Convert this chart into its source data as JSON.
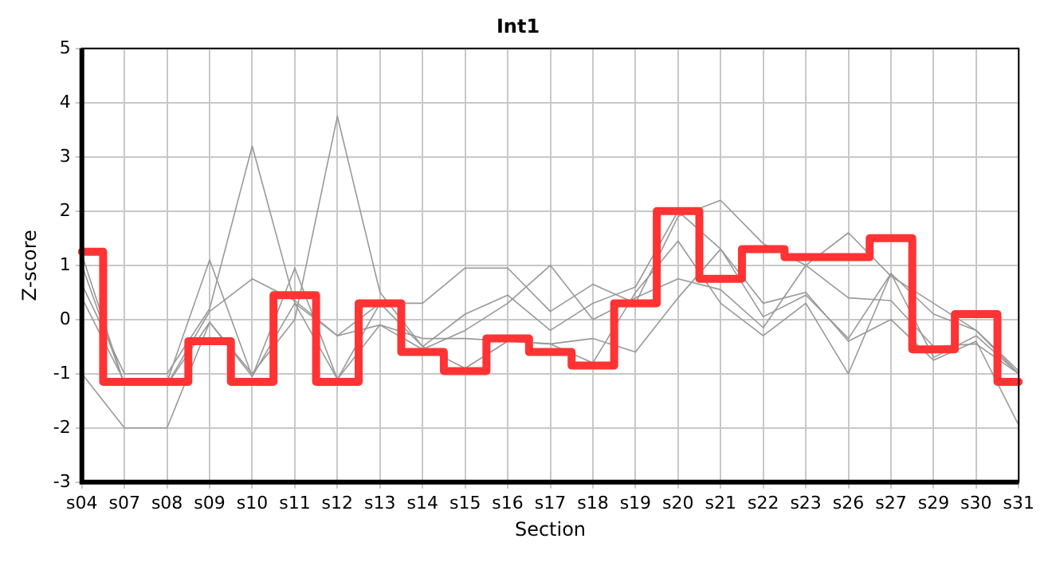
{
  "chart_data": {
    "type": "line",
    "title": "Int1",
    "xlabel": "Section",
    "ylabel": "Z-score",
    "categories": [
      "s04",
      "s07",
      "s08",
      "s09",
      "s10",
      "s11",
      "s12",
      "s13",
      "s14",
      "s15",
      "s16",
      "s17",
      "s18",
      "s19",
      "s20",
      "s21",
      "s22",
      "s23",
      "s26",
      "s27",
      "s29",
      "s30",
      "s31"
    ],
    "series": [
      {
        "color": "#999999",
        "values": [
          0.65,
          -1.0,
          -1.0,
          0.2,
          3.2,
          0.3,
          -1.1,
          0.3,
          0.3,
          0.95,
          0.95,
          0.15,
          0.65,
          0.3,
          1.9,
          2.2,
          1.4,
          1.0,
          1.6,
          0.8,
          0.3,
          -0.2,
          -1.0
        ]
      },
      {
        "color": "#999999",
        "values": [
          1.0,
          -1.2,
          -1.2,
          -0.05,
          -1.0,
          0.0,
          3.75,
          0.5,
          -0.5,
          0.1,
          0.45,
          -0.2,
          0.3,
          0.6,
          2.0,
          1.3,
          0.05,
          0.45,
          -0.35,
          0.85,
          -0.7,
          -0.3,
          -1.0
        ]
      },
      {
        "color": "#999999",
        "values": [
          -1.0,
          -2.0,
          -2.0,
          -0.05,
          -1.05,
          0.95,
          -1.1,
          -0.1,
          -0.35,
          -0.35,
          -0.4,
          -0.45,
          -0.35,
          -0.6,
          0.4,
          1.3,
          0.3,
          0.5,
          -0.4,
          0.0,
          -0.75,
          -0.4,
          -1.95
        ]
      },
      {
        "color": "#999999",
        "values": [
          0.4,
          -1.15,
          -1.15,
          1.1,
          -1.05,
          0.3,
          -0.3,
          0.3,
          -0.5,
          -0.9,
          -0.4,
          -0.45,
          -0.8,
          0.5,
          1.45,
          0.3,
          -0.3,
          0.3,
          -1.0,
          0.85,
          0.1,
          -0.2,
          -0.95
        ]
      },
      {
        "color": "#999999",
        "values": [
          1.2,
          -1.2,
          -1.2,
          0.15,
          0.75,
          0.35,
          -0.3,
          -0.1,
          -0.55,
          -0.2,
          0.3,
          1.0,
          0.0,
          0.4,
          0.75,
          0.55,
          -0.15,
          1.0,
          0.4,
          0.35,
          -0.5,
          -0.45,
          -1.0
        ]
      },
      {
        "type": "step",
        "color": "#ff3333",
        "values": [
          1.25,
          -1.15,
          -1.15,
          -0.4,
          -1.15,
          0.45,
          -1.15,
          0.3,
          -0.6,
          -0.95,
          -0.35,
          -0.6,
          -0.85,
          0.3,
          2.0,
          0.75,
          1.3,
          1.15,
          1.15,
          1.5,
          -0.55,
          0.1,
          -1.15
        ]
      }
    ],
    "ylim": [
      -3,
      5
    ],
    "yticks": [
      -3,
      -2,
      -1,
      0,
      1,
      2,
      3,
      4,
      5
    ],
    "grid": true,
    "legend": false,
    "marker": "none",
    "line_style": "solid"
  }
}
